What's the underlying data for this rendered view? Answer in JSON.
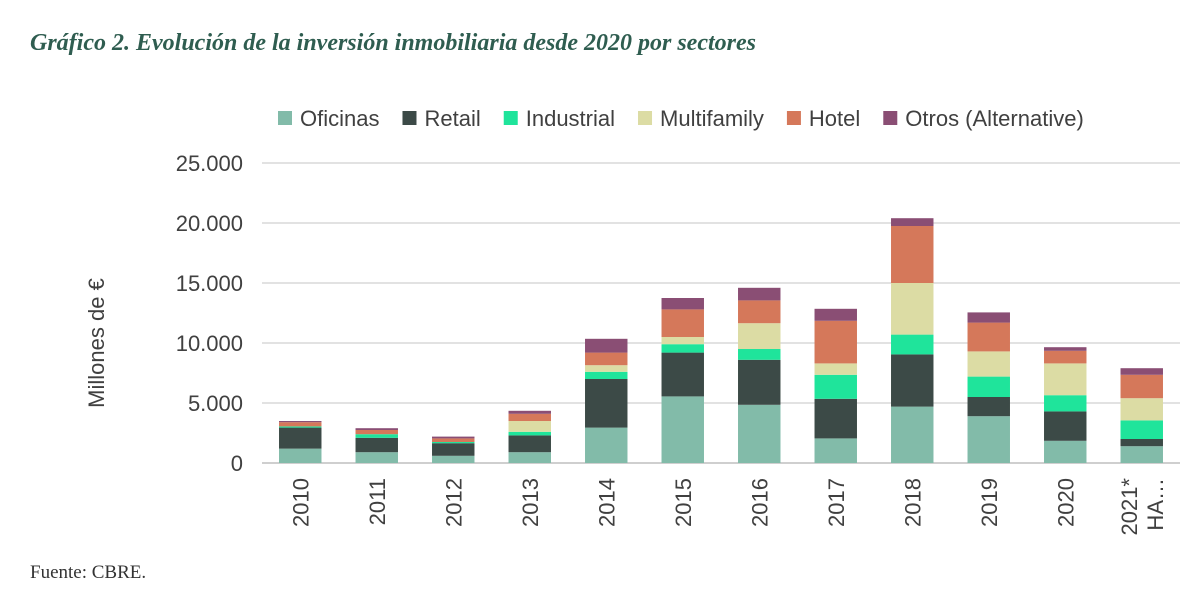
{
  "header": {
    "title": "Gráfico 2. Evolución de la inversión inmobiliaria desde 2020 por sectores"
  },
  "footer": {
    "source": "Fuente: CBRE."
  },
  "chart_data": {
    "type": "bar",
    "stacked": true,
    "title": "",
    "xlabel": "",
    "ylabel": "Millones de €",
    "ylim": [
      0,
      25000
    ],
    "yticks": [
      "0",
      "5.000",
      "10.000",
      "15.000",
      "20.000",
      "25.000"
    ],
    "ytick_values": [
      0,
      5000,
      10000,
      15000,
      20000,
      25000
    ],
    "grid": true,
    "legend_position": "top",
    "categories": [
      [
        "2010"
      ],
      [
        "2011"
      ],
      [
        "2012"
      ],
      [
        "2013"
      ],
      [
        "2014"
      ],
      [
        "2015"
      ],
      [
        "2016"
      ],
      [
        "2017"
      ],
      [
        "2018"
      ],
      [
        "2019"
      ],
      [
        "2020"
      ],
      [
        "2021*",
        "HA…"
      ]
    ],
    "series": [
      {
        "name": "Oficinas",
        "color": "#82bba9",
        "values": [
          1200,
          900,
          600,
          900,
          2950,
          5550,
          4850,
          2050,
          4700,
          3900,
          1850,
          1400
        ]
      },
      {
        "name": "Retail",
        "color": "#3c4a47",
        "values": [
          1750,
          1200,
          1050,
          1400,
          4050,
          3650,
          3750,
          3300,
          4350,
          1600,
          2450,
          600
        ]
      },
      {
        "name": "Industrial",
        "color": "#1fe49b",
        "values": [
          100,
          300,
          100,
          300,
          600,
          700,
          900,
          2000,
          1650,
          1700,
          1350,
          1550
        ]
      },
      {
        "name": "Multifamily",
        "color": "#dcdca4",
        "values": [
          0,
          0,
          0,
          900,
          550,
          600,
          2150,
          950,
          4300,
          2100,
          2650,
          1850
        ]
      },
      {
        "name": "Hotel",
        "color": "#d5785a",
        "values": [
          350,
          350,
          300,
          600,
          1050,
          2300,
          1900,
          3550,
          4750,
          2400,
          1050,
          1950
        ]
      },
      {
        "name": "Otros (Alternative)",
        "color": "#8a4e74",
        "values": [
          100,
          150,
          150,
          250,
          1150,
          950,
          1050,
          1000,
          650,
          850,
          300,
          550
        ]
      }
    ]
  }
}
